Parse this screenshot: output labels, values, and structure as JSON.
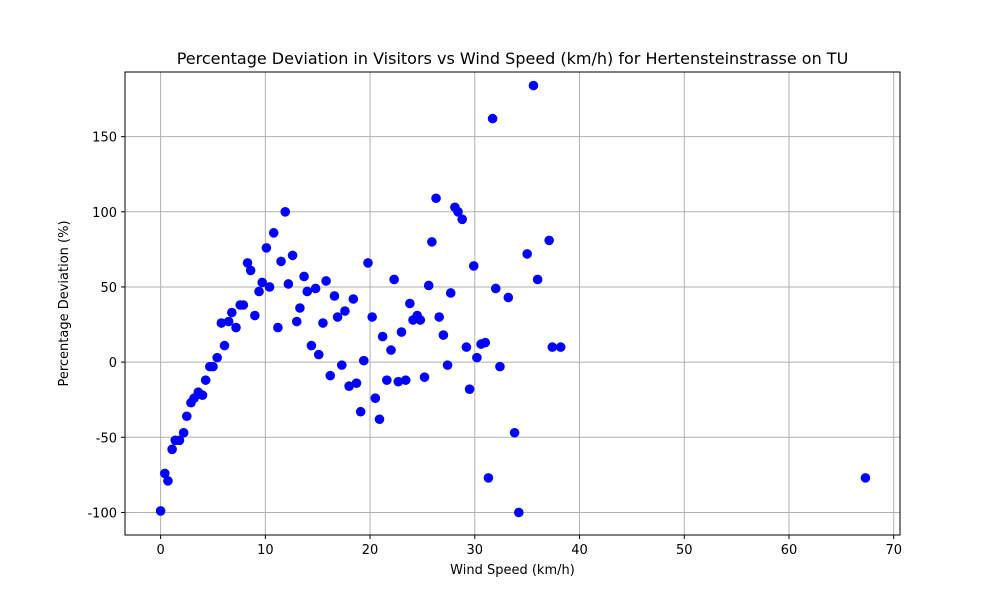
{
  "chart_data": {
    "type": "scatter",
    "title": "Percentage Deviation in Visitors vs Wind Speed (km/h) for Hertensteinstrasse on TU",
    "xlabel": "Wind Speed (km/h)",
    "ylabel": "Percentage Deviation (%)",
    "xlim": [
      -3.4,
      70.6
    ],
    "ylim": [
      -115,
      193
    ],
    "xticks": [
      0,
      10,
      20,
      30,
      40,
      50,
      60,
      70
    ],
    "yticks": [
      -100,
      -50,
      0,
      50,
      100,
      150
    ],
    "grid": true,
    "marker_color": "#0000ff",
    "points": [
      [
        0.0,
        -99
      ],
      [
        0.4,
        -74
      ],
      [
        0.7,
        -79
      ],
      [
        1.1,
        -58
      ],
      [
        1.4,
        -52
      ],
      [
        1.8,
        -52
      ],
      [
        2.2,
        -47
      ],
      [
        2.5,
        -36
      ],
      [
        2.9,
        -27
      ],
      [
        3.2,
        -24
      ],
      [
        3.6,
        -20
      ],
      [
        4.0,
        -22
      ],
      [
        4.3,
        -12
      ],
      [
        4.7,
        -3
      ],
      [
        5.0,
        -3
      ],
      [
        5.4,
        3
      ],
      [
        5.8,
        26
      ],
      [
        6.1,
        11
      ],
      [
        6.5,
        27
      ],
      [
        6.8,
        33
      ],
      [
        7.2,
        23
      ],
      [
        7.6,
        38
      ],
      [
        7.9,
        38
      ],
      [
        8.3,
        66
      ],
      [
        8.6,
        61
      ],
      [
        9.0,
        31
      ],
      [
        9.4,
        47
      ],
      [
        9.7,
        53
      ],
      [
        10.1,
        76
      ],
      [
        10.4,
        50
      ],
      [
        10.8,
        86
      ],
      [
        11.2,
        23
      ],
      [
        11.5,
        67
      ],
      [
        11.9,
        100
      ],
      [
        12.2,
        52
      ],
      [
        12.6,
        71
      ],
      [
        13.0,
        27
      ],
      [
        13.3,
        36
      ],
      [
        13.7,
        57
      ],
      [
        14.0,
        47
      ],
      [
        14.4,
        11
      ],
      [
        14.8,
        49
      ],
      [
        15.1,
        5
      ],
      [
        15.5,
        26
      ],
      [
        15.8,
        54
      ],
      [
        16.2,
        -9
      ],
      [
        16.6,
        44
      ],
      [
        16.9,
        30
      ],
      [
        17.3,
        -2
      ],
      [
        17.6,
        34
      ],
      [
        18.0,
        -16
      ],
      [
        18.4,
        42
      ],
      [
        18.7,
        -14
      ],
      [
        19.1,
        -33
      ],
      [
        19.4,
        1
      ],
      [
        19.8,
        66
      ],
      [
        20.2,
        30
      ],
      [
        20.5,
        -24
      ],
      [
        20.9,
        -38
      ],
      [
        21.2,
        17
      ],
      [
        21.6,
        -12
      ],
      [
        22.0,
        8
      ],
      [
        22.3,
        55
      ],
      [
        22.7,
        -13
      ],
      [
        23.0,
        20
      ],
      [
        23.4,
        -12
      ],
      [
        23.8,
        39
      ],
      [
        24.1,
        28
      ],
      [
        24.5,
        31
      ],
      [
        24.8,
        28
      ],
      [
        25.2,
        -10
      ],
      [
        25.6,
        51
      ],
      [
        25.9,
        80
      ],
      [
        26.3,
        109
      ],
      [
        26.6,
        30
      ],
      [
        27.0,
        18
      ],
      [
        27.4,
        -2
      ],
      [
        27.7,
        46
      ],
      [
        28.1,
        103
      ],
      [
        28.4,
        100
      ],
      [
        28.8,
        95
      ],
      [
        29.2,
        10
      ],
      [
        29.5,
        -18
      ],
      [
        29.9,
        64
      ],
      [
        30.2,
        3
      ],
      [
        30.6,
        12
      ],
      [
        31.0,
        13
      ],
      [
        31.3,
        -77
      ],
      [
        31.7,
        162
      ],
      [
        32.0,
        49
      ],
      [
        32.4,
        -3
      ],
      [
        33.2,
        43
      ],
      [
        33.8,
        -47
      ],
      [
        34.2,
        -100
      ],
      [
        35.0,
        72
      ],
      [
        35.6,
        184
      ],
      [
        36.0,
        55
      ],
      [
        37.1,
        81
      ],
      [
        37.4,
        10
      ],
      [
        38.2,
        10
      ],
      [
        67.3,
        -77
      ]
    ]
  }
}
